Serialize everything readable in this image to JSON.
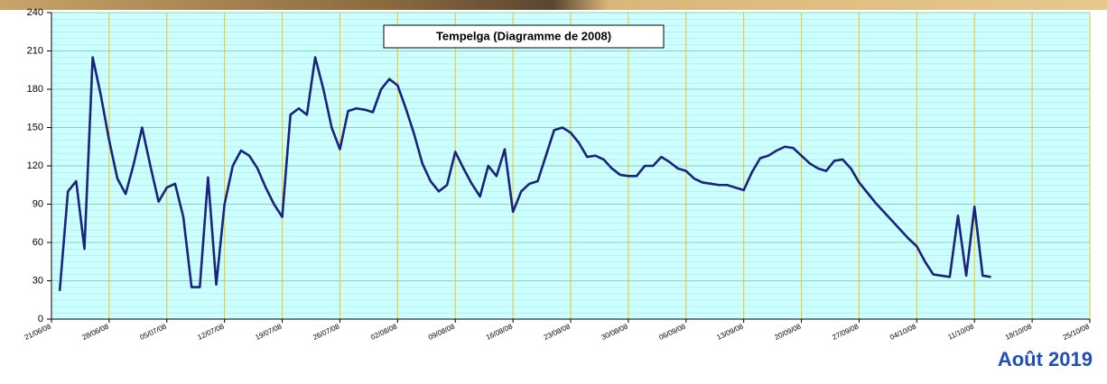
{
  "chart_data": {
    "type": "line",
    "title": "Tempelga (Diagramme de 2008)",
    "footer": "Août 2019",
    "x": [
      "22/06/08",
      "23/06/08",
      "24/06/08",
      "25/06/08",
      "26/06/08",
      "27/06/08",
      "28/06/08",
      "29/06/08",
      "30/06/08",
      "01/07/08",
      "02/07/08",
      "03/07/08",
      "04/07/08",
      "05/07/08",
      "06/07/08",
      "07/07/08",
      "08/07/08",
      "09/07/08",
      "10/07/08",
      "11/07/08",
      "12/07/08",
      "13/07/08",
      "14/07/08",
      "15/07/08",
      "16/07/08",
      "17/07/08",
      "18/07/08",
      "19/07/08",
      "20/07/08",
      "21/07/08",
      "22/07/08",
      "23/07/08",
      "24/07/08",
      "25/07/08",
      "26/07/08",
      "27/07/08",
      "28/07/08",
      "29/07/08",
      "30/07/08",
      "31/07/08",
      "01/08/08",
      "02/08/08",
      "03/08/08",
      "04/08/08",
      "05/08/08",
      "06/08/08",
      "07/08/08",
      "08/08/08",
      "09/08/08",
      "10/08/08",
      "11/08/08",
      "12/08/08",
      "13/08/08",
      "14/08/08",
      "15/08/08",
      "16/08/08",
      "17/08/08",
      "18/08/08",
      "19/08/08",
      "20/08/08",
      "21/08/08",
      "22/08/08",
      "23/08/08",
      "24/08/08",
      "25/08/08",
      "26/08/08",
      "27/08/08",
      "28/08/08",
      "29/08/08",
      "30/08/08",
      "31/08/08",
      "01/09/08",
      "02/09/08",
      "03/09/08",
      "04/09/08",
      "05/09/08",
      "06/09/08",
      "07/09/08",
      "08/09/08",
      "09/09/08",
      "10/09/08",
      "11/09/08",
      "12/09/08",
      "13/09/08",
      "14/09/08",
      "15/09/08",
      "16/09/08",
      "17/09/08",
      "18/09/08",
      "19/09/08",
      "20/09/08",
      "21/09/08",
      "22/09/08",
      "23/09/08",
      "24/09/08",
      "25/09/08",
      "26/09/08",
      "27/09/08",
      "28/09/08",
      "29/09/08",
      "30/09/08",
      "01/10/08",
      "02/10/08",
      "03/10/08",
      "04/10/08",
      "05/10/08",
      "06/10/08",
      "07/10/08",
      "08/10/08",
      "09/10/08",
      "10/10/08",
      "11/10/08",
      "12/10/08",
      "13/10/08"
    ],
    "series": [
      {
        "color": "#1a237e",
        "values": [
          22,
          100,
          108,
          55,
          205,
          175,
          140,
          110,
          98,
          122,
          150,
          120,
          92,
          103,
          106,
          80,
          25,
          25,
          111,
          27,
          90,
          120,
          132,
          128,
          118,
          103,
          90,
          80,
          160,
          165,
          160,
          205,
          180,
          150,
          133,
          163,
          165,
          164,
          162,
          180,
          188,
          183,
          165,
          145,
          122,
          108,
          100,
          105,
          131,
          118,
          106,
          96,
          120,
          112,
          133,
          84,
          100,
          106,
          108,
          128,
          148,
          150,
          146,
          138,
          127,
          128,
          125,
          118,
          113,
          112,
          112,
          120,
          120,
          127,
          123,
          118,
          116,
          110,
          107,
          106,
          105,
          105,
          103,
          101,
          115,
          126,
          128,
          132,
          135,
          134,
          128,
          122,
          118,
          116,
          124,
          125,
          118,
          107,
          99,
          91,
          84,
          77,
          70,
          63,
          57,
          45,
          35,
          34,
          33,
          81,
          34,
          88,
          34,
          33
        ]
      }
    ],
    "xlim": [
      "21/06/08",
      "25/10/08"
    ],
    "xticks": [
      "21/06/08",
      "28/06/08",
      "05/07/08",
      "12/07/08",
      "19/07/08",
      "26/07/08",
      "02/08/08",
      "09/08/08",
      "16/08/08",
      "23/08/08",
      "30/08/08",
      "06/09/08",
      "13/09/08",
      "20/09/08",
      "27/09/08",
      "04/10/08",
      "11/10/08",
      "18/10/08",
      "25/10/08"
    ],
    "ylim": [
      0,
      240
    ],
    "yticks": [
      0,
      30,
      60,
      90,
      120,
      150,
      180,
      210,
      240
    ],
    "grid": true
  }
}
